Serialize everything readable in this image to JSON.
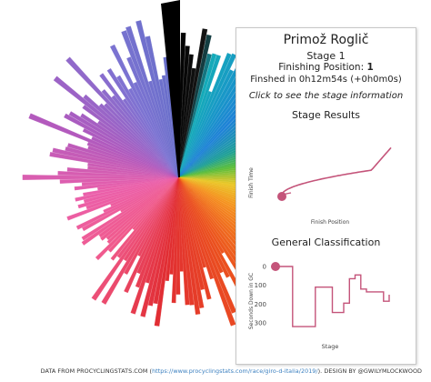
{
  "card": {
    "rider": "Primož Roglič",
    "stage_line": "Stage 1",
    "finishing_label": "Finishing Position:",
    "finishing_value": "1",
    "finished_line": "Finshed in 0h12m54s (+0h0m0s)",
    "click_prompt": "Click to see the stage information",
    "stage_results_title": "Stage Results",
    "stage_results_ylabel": "Finish Time",
    "stage_results_xlabel": "Finish Position",
    "gc_title": "General Classification",
    "gc_ylabel": "Seconds Down in GC",
    "gc_xlabel": "Stage",
    "gc_ticks": [
      "0",
      "100",
      "200",
      "300"
    ]
  },
  "footer": {
    "prefix": "DATA FROM PROCYCLINGSTATS.COM (",
    "link": "https://www.procyclingstats.com/race/giro-d-italia/2019/",
    "suffix": "). DESIGN BY @GWILYMLOCKWOOD"
  },
  "colors": {
    "accent": "#c4547a",
    "accent_light": "#f1d3dd",
    "card_border": "#c8c8c8",
    "link": "#3a7fbf"
  },
  "chart_data": [
    {
      "type": "line",
      "title": "Stage Results",
      "xlabel": "Finish Position",
      "ylabel": "Finish Time",
      "highlight_point": "first position (rider)",
      "shape": "finish time rises from the winner, flattening, then a steep rise among the last finishers"
    },
    {
      "type": "line",
      "title": "General Classification",
      "xlabel": "Stage",
      "ylabel": "Seconds Down in GC",
      "y_ticks": [
        0,
        100,
        200,
        300
      ],
      "y_reversed": true,
      "x": [
        1,
        2,
        3,
        4,
        5,
        6,
        7,
        8,
        9,
        10,
        11,
        12,
        13,
        14,
        15,
        16,
        17,
        18,
        19,
        20,
        21
      ],
      "values": [
        0,
        0,
        0,
        320,
        320,
        320,
        320,
        110,
        110,
        110,
        245,
        245,
        195,
        65,
        45,
        120,
        135,
        135,
        135,
        185,
        150
      ]
    }
  ]
}
